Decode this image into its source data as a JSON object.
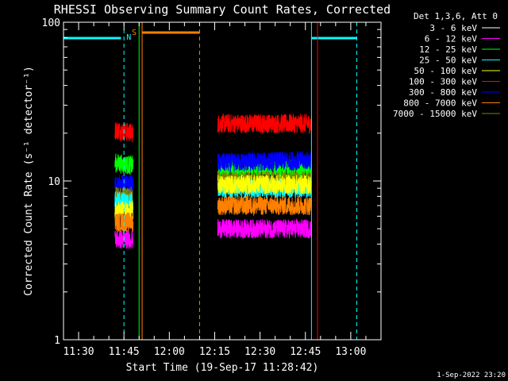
{
  "chart_data": {
    "type": "line",
    "title": "RHESSI Observing Summary Count Rates, Corrected",
    "xlabel": "Start Time (19-Sep-17 11:28:42)",
    "ylabel": "Corrected Count Rate (s⁻¹ detector⁻¹)",
    "yscale": "log",
    "ylim": [
      1,
      100
    ],
    "xlim": [
      "11:25",
      "13:10"
    ],
    "x_ticks": [
      "11:30",
      "11:45",
      "12:00",
      "12:15",
      "12:30",
      "12:45",
      "13:00"
    ],
    "y_ticks": [
      "1",
      "10",
      "100"
    ],
    "legend": {
      "title": "Det 1,3,6, Att 0",
      "placement": "right",
      "entries": [
        {
          "label": "3 - 6 keV",
          "color": "#ffffff"
        },
        {
          "label": "6 - 12 keV",
          "color": "#ff00ff"
        },
        {
          "label": "12 - 25 keV",
          "color": "#00ff00"
        },
        {
          "label": "25 - 50 keV",
          "color": "#00ffff"
        },
        {
          "label": "50 - 100 keV",
          "color": "#ffff00"
        },
        {
          "label": "100 - 300 keV",
          "color": "#ff0000"
        },
        {
          "label": "300 - 800 keV",
          "color": "#0000ff"
        },
        {
          "label": "800 - 7000 keV",
          "color": "#ff8000"
        },
        {
          "label": "7000 - 15000 keV",
          "color": "#808000"
        }
      ]
    },
    "segments": [
      {
        "start": "11:42",
        "end": "11:48"
      },
      {
        "start": "12:16",
        "end": "12:47"
      }
    ],
    "series": [
      {
        "color": "#000000",
        "segments": [
          [
            22.5,
            22
          ],
          [
            25,
            25
          ]
        ]
      },
      {
        "color": "#ff0000",
        "segments": [
          [
            21,
            20
          ],
          [
            23,
            23
          ]
        ]
      },
      {
        "color": "#00ff00",
        "segments": [
          [
            13,
            12.5
          ],
          [
            12,
            12
          ]
        ]
      },
      {
        "color": "#0000ff",
        "segments": [
          [
            9.5,
            9.5
          ],
          [
            13,
            13.5
          ]
        ]
      },
      {
        "color": "#808000",
        "segments": [
          [
            8,
            8
          ],
          [
            10,
            10
          ]
        ]
      },
      {
        "color": "#00ffff",
        "segments": [
          [
            7.5,
            7.5
          ],
          [
            9,
            9
          ]
        ]
      },
      {
        "color": "#ffff00",
        "segments": [
          [
            6.5,
            6.5
          ],
          [
            9.5,
            9.5
          ]
        ]
      },
      {
        "color": "#ff00ff",
        "segments": [
          [
            4.3,
            4.3
          ],
          [
            5,
            5
          ]
        ]
      },
      {
        "color": "#ff8000",
        "segments": [
          [
            5.5,
            5.5
          ],
          [
            7,
            7
          ]
        ]
      }
    ],
    "night_bars": [
      {
        "start": "11:25",
        "end": "11:44",
        "label": ""
      },
      {
        "start": "11:44",
        "end": "11:45",
        "label": "N"
      },
      {
        "start": "12:47",
        "end": "13:02",
        "label": ""
      }
    ],
    "saa_bar": {
      "start": "11:51",
      "end": "12:10",
      "label": "S"
    },
    "vlines_solid": [
      {
        "t": "11:50",
        "color": "#00ff00"
      },
      {
        "t": "11:51",
        "color": "#ff8000"
      },
      {
        "t": "12:47",
        "color": "#00ffff"
      },
      {
        "t": "12:49",
        "color": "#ff0000"
      }
    ],
    "vlines_dashed": [
      {
        "t": "11:45",
        "color": "#00ffff"
      },
      {
        "t": "12:10",
        "color": "#ff8000"
      },
      {
        "t": "13:02",
        "color": "#00ffff"
      }
    ]
  },
  "footer": {
    "timestamp": "1-Sep-2022 23:20"
  }
}
